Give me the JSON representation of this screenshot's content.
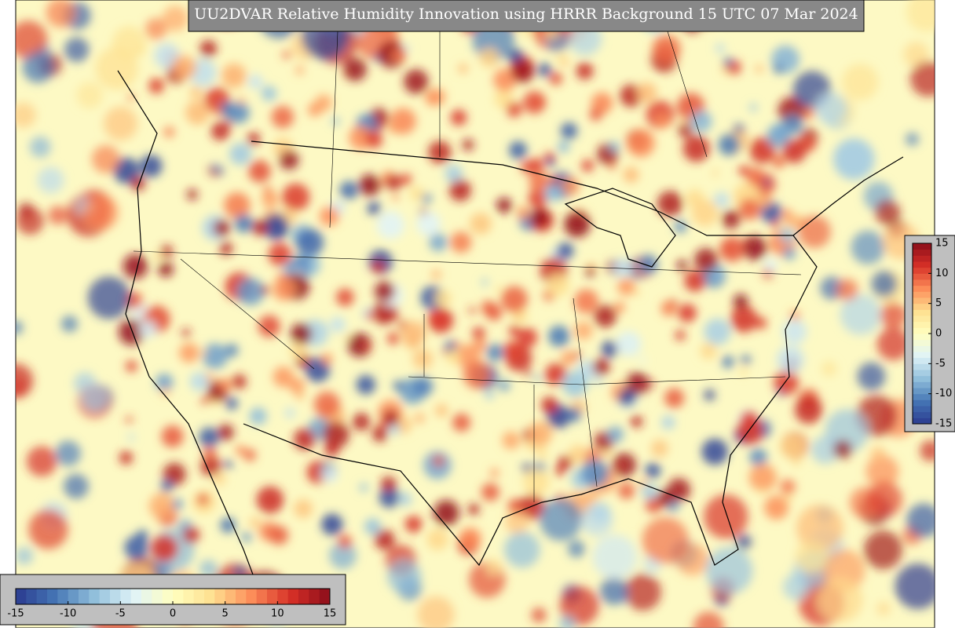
{
  "title": "UU2DVAR Relative Humidity Innovation using HRRR Background 15 UTC 07 Mar 2024",
  "colorbars": [
    {
      "orientation": "horizontal",
      "range": [
        -15,
        15
      ],
      "ticks": [
        -15,
        -10,
        -5,
        0,
        5,
        10,
        15
      ]
    },
    {
      "orientation": "vertical",
      "range": [
        -15,
        15
      ],
      "ticks": [
        -15,
        -10,
        -5,
        0,
        5,
        10,
        15
      ]
    }
  ],
  "colormap": [
    "#2b3a8f",
    "#4575b4",
    "#91bfdb",
    "#e0f3f8",
    "#ffffbf",
    "#fee090",
    "#fc8d59",
    "#d73027",
    "#8b0d1a"
  ]
}
